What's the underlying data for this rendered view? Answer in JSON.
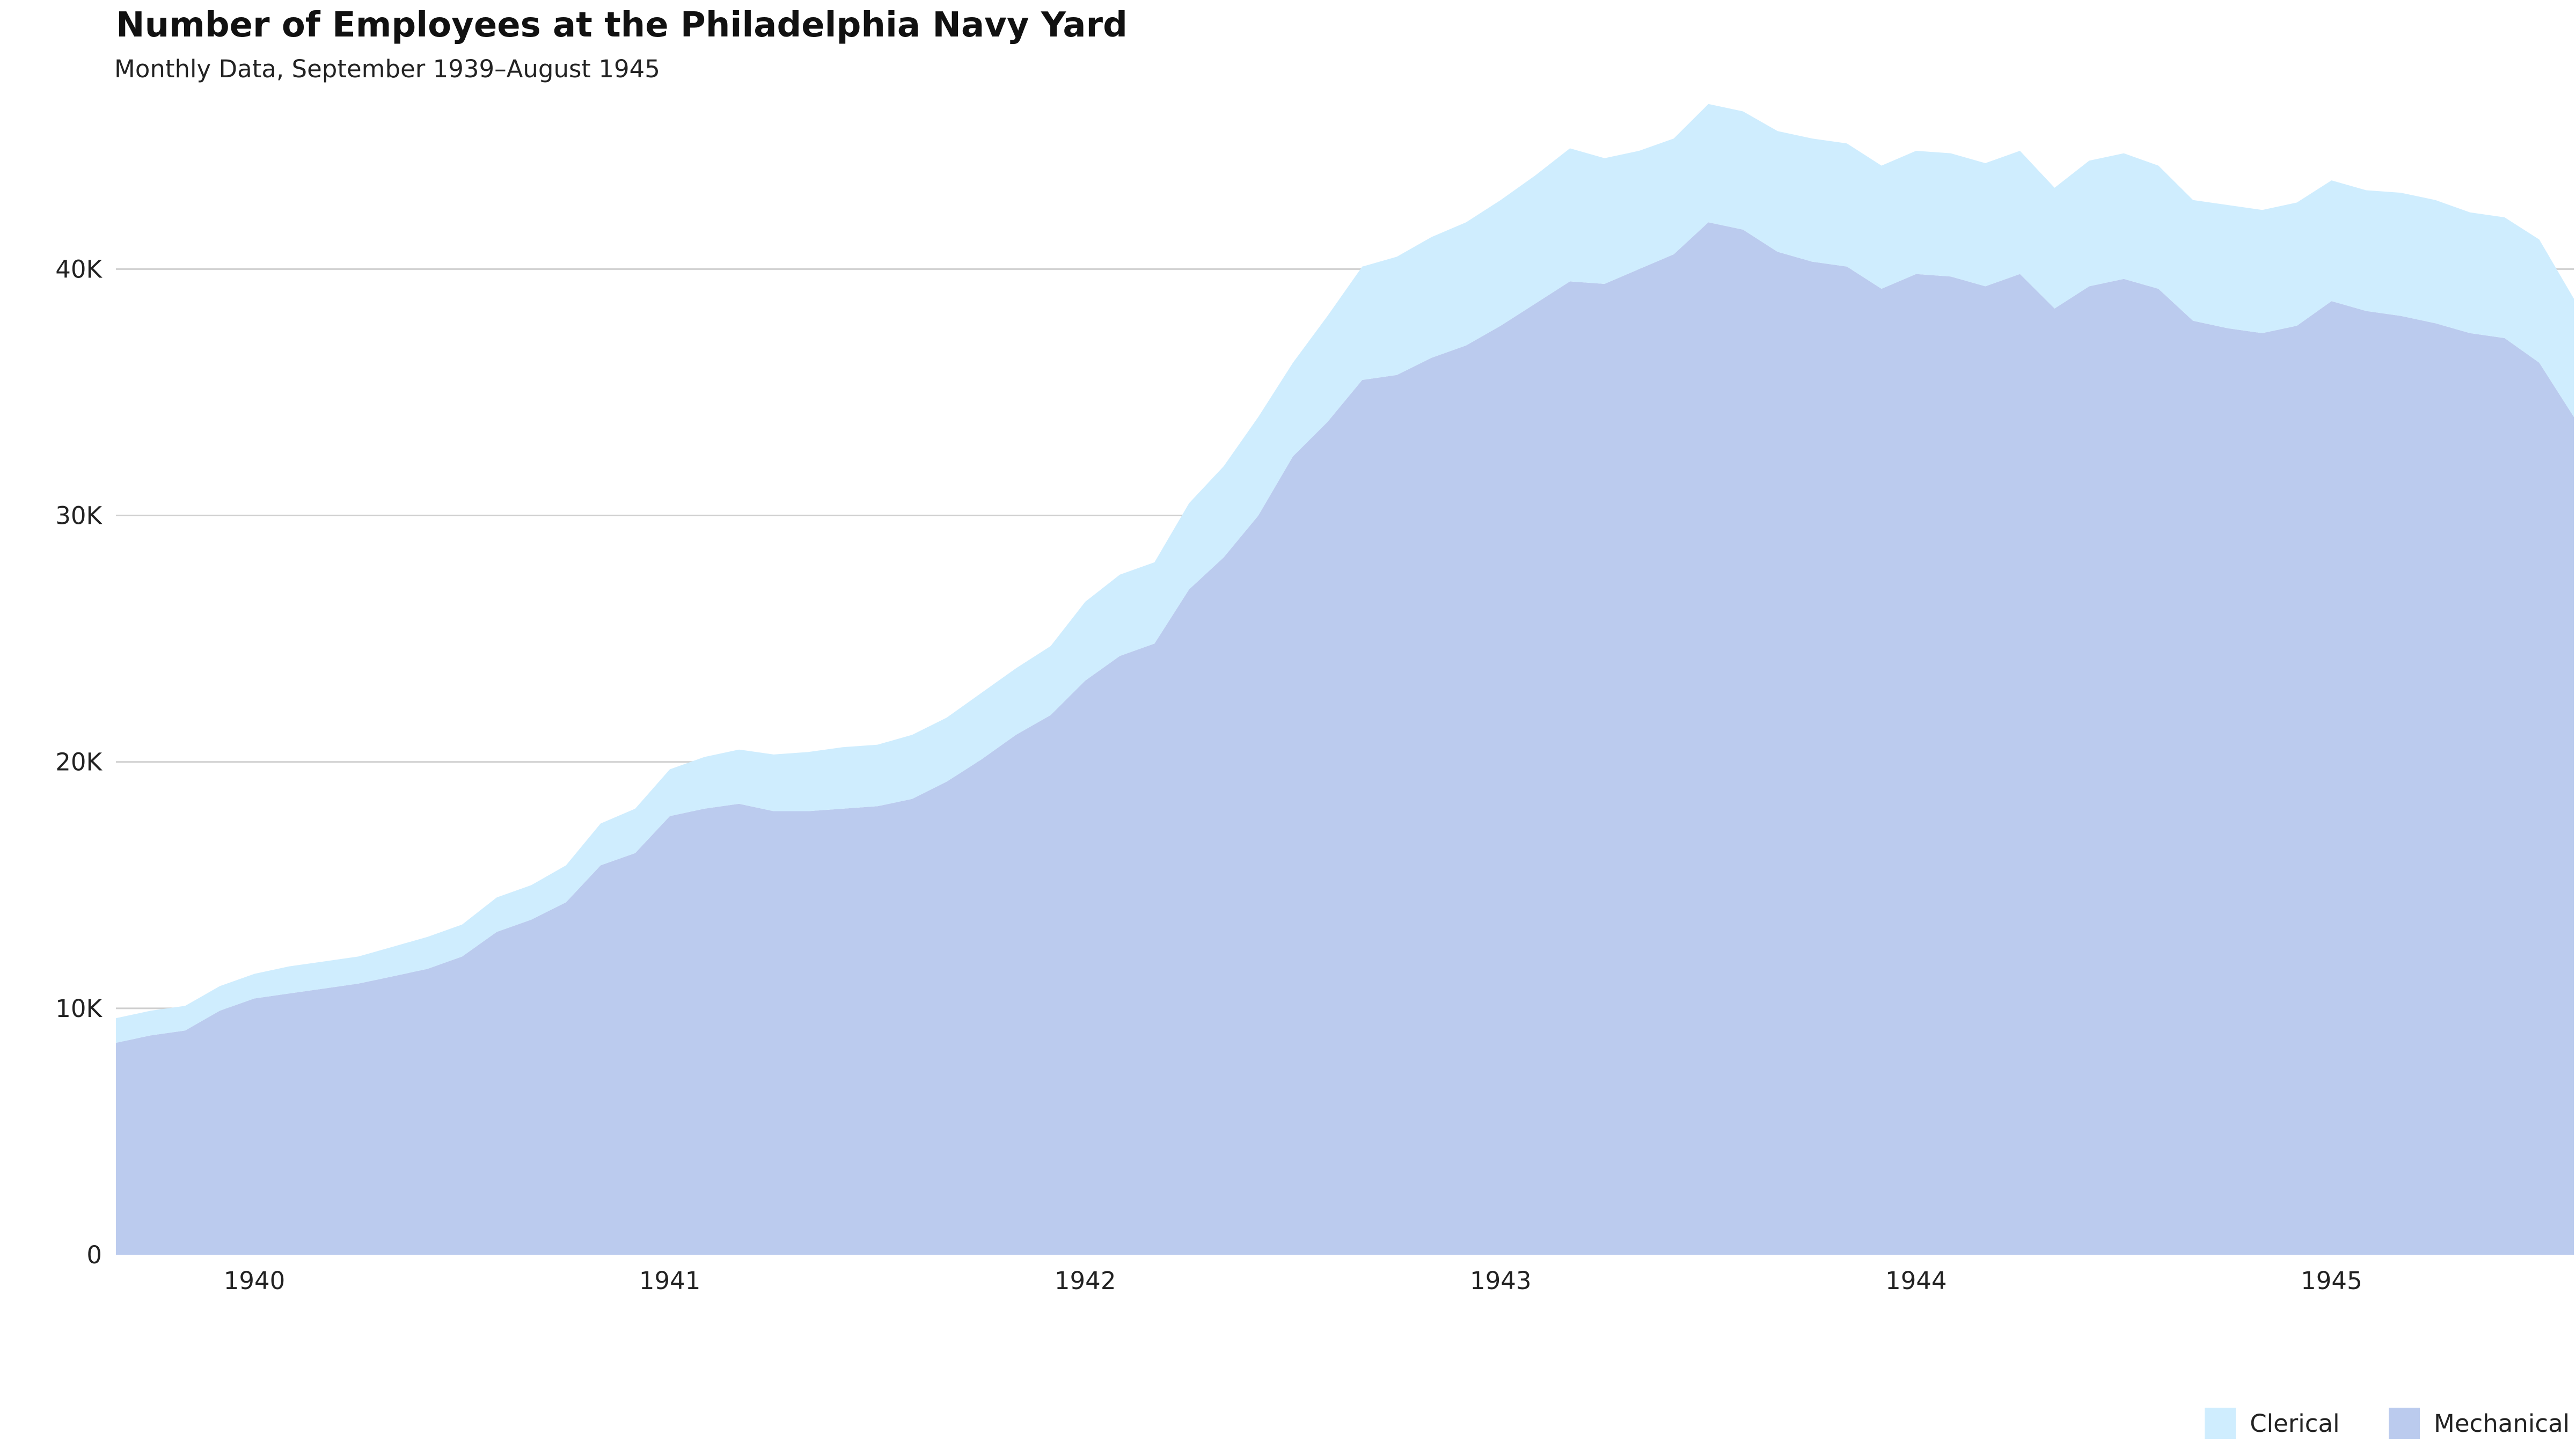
{
  "chart_data": {
    "type": "area",
    "stacked": true,
    "title": "Number of Employees at the Philadelphia Navy Yard",
    "subtitle": "Monthly Data, September 1939–August 1945",
    "xlabel": "",
    "ylabel": "",
    "x_start": "1939-09",
    "x_end": "1945-08",
    "x_ticks": [
      "1940",
      "1941",
      "1942",
      "1943",
      "1944",
      "1945"
    ],
    "y_ticks": [
      "0",
      "10K",
      "20K",
      "30K",
      "40K"
    ],
    "ylim": [
      0,
      47000
    ],
    "grid": true,
    "legend_position": "bottom-right",
    "x": [
      "1939-09",
      "1939-10",
      "1939-11",
      "1939-12",
      "1940-01",
      "1940-02",
      "1940-03",
      "1940-04",
      "1940-05",
      "1940-06",
      "1940-07",
      "1940-08",
      "1940-09",
      "1940-10",
      "1940-11",
      "1940-12",
      "1941-01",
      "1941-02",
      "1941-03",
      "1941-04",
      "1941-05",
      "1941-06",
      "1941-07",
      "1941-08",
      "1941-09",
      "1941-10",
      "1941-11",
      "1941-12",
      "1942-01",
      "1942-02",
      "1942-03",
      "1942-04",
      "1942-05",
      "1942-06",
      "1942-07",
      "1942-08",
      "1942-09",
      "1942-10",
      "1942-11",
      "1942-12",
      "1943-01",
      "1943-02",
      "1943-03",
      "1943-04",
      "1943-05",
      "1943-06",
      "1943-07",
      "1943-08",
      "1943-09",
      "1943-10",
      "1943-11",
      "1943-12",
      "1944-01",
      "1944-02",
      "1944-03",
      "1944-04",
      "1944-05",
      "1944-06",
      "1944-07",
      "1944-08",
      "1944-09",
      "1944-10",
      "1944-11",
      "1944-12",
      "1945-01",
      "1945-02",
      "1945-03",
      "1945-04",
      "1945-05",
      "1945-06",
      "1945-07",
      "1945-08"
    ],
    "series": [
      {
        "name": "Mechanical",
        "color": "#bbcbee",
        "values": [
          8600,
          8900,
          9100,
          9900,
          10400,
          10600,
          10800,
          11000,
          11300,
          11600,
          12100,
          13100,
          13600,
          14300,
          15800,
          16300,
          17800,
          18100,
          18300,
          18000,
          18000,
          18100,
          18200,
          18500,
          19200,
          20100,
          21100,
          21900,
          23300,
          24300,
          24800,
          27000,
          28300,
          30000,
          32400,
          33800,
          35500,
          35700,
          36400,
          36900,
          37700,
          38600,
          39500,
          39400,
          40000,
          40600,
          41900,
          41600,
          40700,
          40300,
          40100,
          39200,
          39800,
          39700,
          39300,
          39800,
          38400,
          39300,
          39600,
          39200,
          37900,
          37600,
          37400,
          37700,
          38700,
          38300,
          38100,
          37800,
          37400,
          37200,
          36200,
          34000
        ]
      },
      {
        "name": "Clerical",
        "color": "#cfedfe",
        "values": [
          1000,
          1000,
          1000,
          1000,
          1000,
          1100,
          1100,
          1100,
          1200,
          1300,
          1300,
          1400,
          1400,
          1500,
          1700,
          1800,
          1900,
          2100,
          2200,
          2300,
          2400,
          2500,
          2500,
          2600,
          2600,
          2700,
          2700,
          2800,
          3200,
          3300,
          3300,
          3500,
          3700,
          4000,
          3800,
          4300,
          4600,
          4800,
          4900,
          5000,
          5100,
          5200,
          5400,
          5100,
          4800,
          4700,
          4800,
          4800,
          4900,
          5000,
          5000,
          5000,
          5000,
          5000,
          5000,
          5000,
          4900,
          5100,
          5100,
          5000,
          4900,
          5000,
          5000,
          5000,
          4900,
          4900,
          5000,
          5000,
          4900,
          4900,
          5000,
          4800
        ]
      }
    ]
  }
}
